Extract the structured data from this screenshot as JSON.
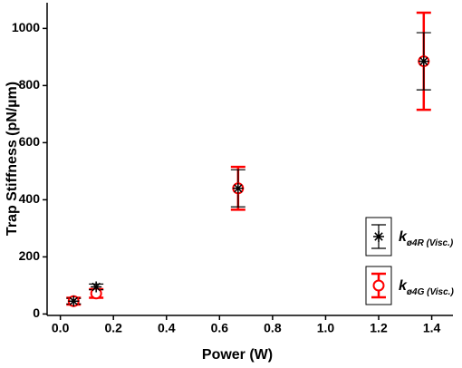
{
  "chart_data": {
    "type": "scatter",
    "xlabel": "Power (W)",
    "ylabel": "Trap Stiffness (pN/µm)",
    "xlim": [
      -0.05,
      1.48
    ],
    "ylim": [
      -5,
      1090
    ],
    "xticks": [
      {
        "value": 0,
        "label": "0.0"
      },
      0.2,
      0.4,
      0.6,
      0.8,
      {
        "value": 1,
        "label": "1.0"
      },
      1.2,
      1.4
    ],
    "yticks": [
      0,
      200,
      400,
      600,
      800,
      1000
    ],
    "legend": "lower right",
    "series": [
      {
        "name": "k",
        "subscript": "ø4R (Visc.)",
        "color": "#000000",
        "marker": "asterisk",
        "x": [
          0.05,
          0.135,
          0.67,
          1.37
        ],
        "values": [
          45,
          95,
          440,
          885
        ],
        "errors": [
          10,
          10,
          65,
          100
        ]
      },
      {
        "name": "k",
        "subscript": "ø4G (Visc.)",
        "color": "#ff0000",
        "marker": "circle",
        "x": [
          0.05,
          0.135,
          0.67,
          1.37
        ],
        "values": [
          45,
          72,
          440,
          885
        ],
        "errors": [
          12,
          15,
          75,
          170
        ]
      }
    ]
  }
}
